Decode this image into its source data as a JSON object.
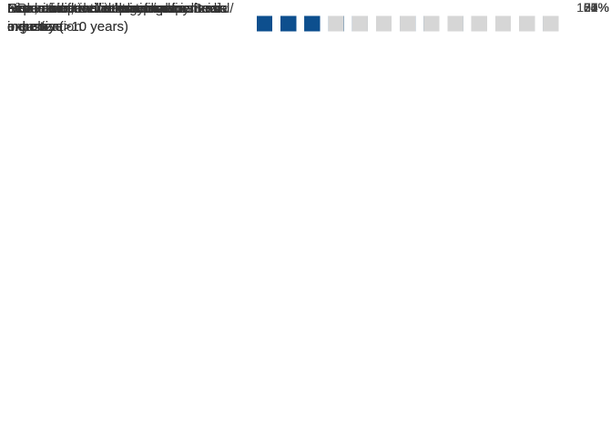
{
  "chart_data": {
    "type": "waffle-bar",
    "categories": [
      "Leadership development experience",
      "Experience in international business / organization",
      "Finance / financial management expertise",
      "Executive-level role in financial industry (>10 years)",
      "Non-executive listed company Board member",
      "Risk, audit and/or compliance expertise",
      "Executive-level role in non-financial industry (>10 years)",
      "Innovation, technology and/or media expertise",
      "HR and incentive structures"
    ],
    "values": [
      100,
      100,
      77,
      62,
      54,
      54,
      31,
      31,
      23
    ],
    "value_labels": [
      "100%",
      "100%",
      "77%",
      "62%",
      "54%",
      "54%",
      "31%",
      "31%",
      "23%"
    ],
    "xlim": [
      0,
      100
    ],
    "color": "#0d4f8e",
    "empty_color": "#d6d6d6"
  }
}
